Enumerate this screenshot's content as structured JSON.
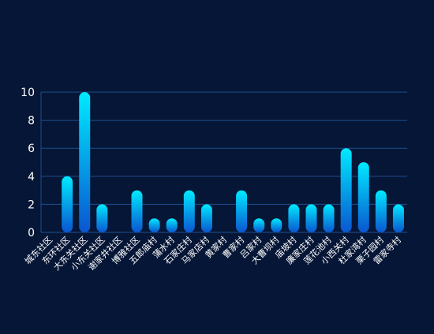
{
  "chart_data": {
    "type": "bar",
    "categories": [
      "城东社区",
      "东环社区",
      "大东关社区",
      "小东关社区",
      "谢家井社区",
      "博雅社区",
      "五郎庙村",
      "蒲水村",
      "石家庄村",
      "马家店村",
      "黄家村",
      "曹家村",
      "吕家村",
      "大曹坝村",
      "庙坡村",
      "廉家庄村",
      "莲花池村",
      "小西关村",
      "杜家湾村",
      "栗子园村",
      "雷家寺村"
    ],
    "values": [
      0,
      4,
      10,
      2,
      0,
      3,
      1,
      1,
      3,
      2,
      0,
      3,
      1,
      1,
      2,
      2,
      2,
      6,
      5,
      3,
      2
    ],
    "color": [
      "#00eaff",
      "#0a56d0"
    ],
    "ylim": [
      0,
      10
    ],
    "yticks": [
      0,
      2,
      4,
      6,
      8,
      10
    ],
    "grid": true
  }
}
